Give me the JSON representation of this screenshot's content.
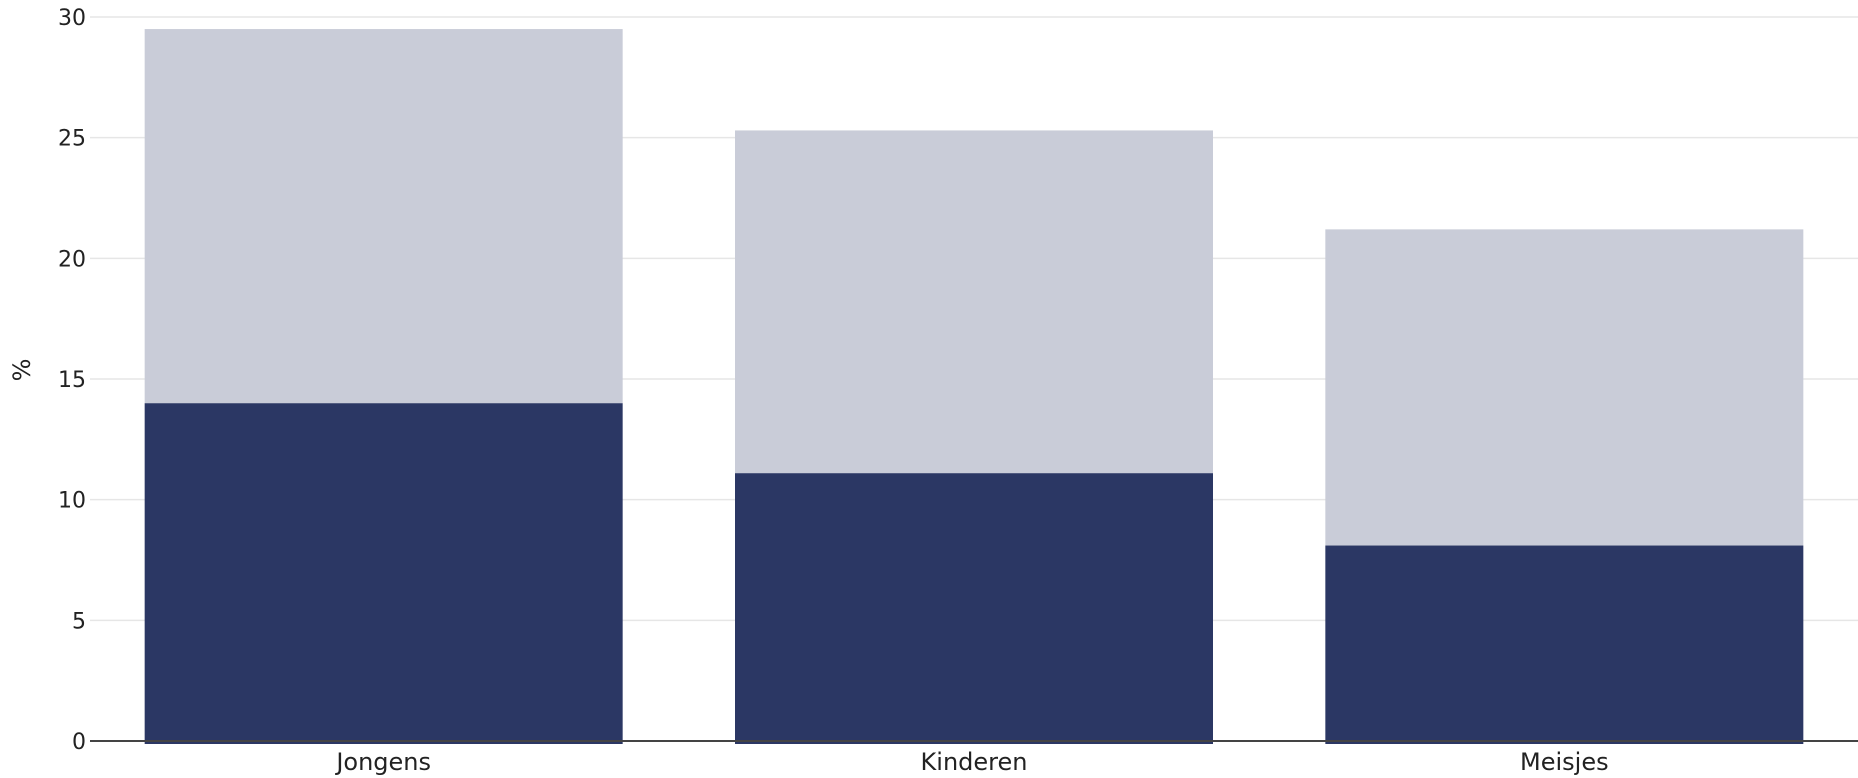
{
  "chart_data": {
    "type": "bar",
    "stacked": true,
    "categories": [
      "Jongens",
      "Kinderen",
      "Meisjes"
    ],
    "series": [
      {
        "values": [
          14.0,
          11.1,
          8.1
        ],
        "color": "#2b3764"
      },
      {
        "values": [
          15.5,
          14.2,
          13.1
        ],
        "color": "#c9ccd8"
      }
    ],
    "ylabel": "%",
    "ylim": [
      0,
      30
    ],
    "yticks": [
      0,
      5,
      10,
      15,
      20,
      25,
      30
    ],
    "grid": true,
    "legend": "none"
  }
}
